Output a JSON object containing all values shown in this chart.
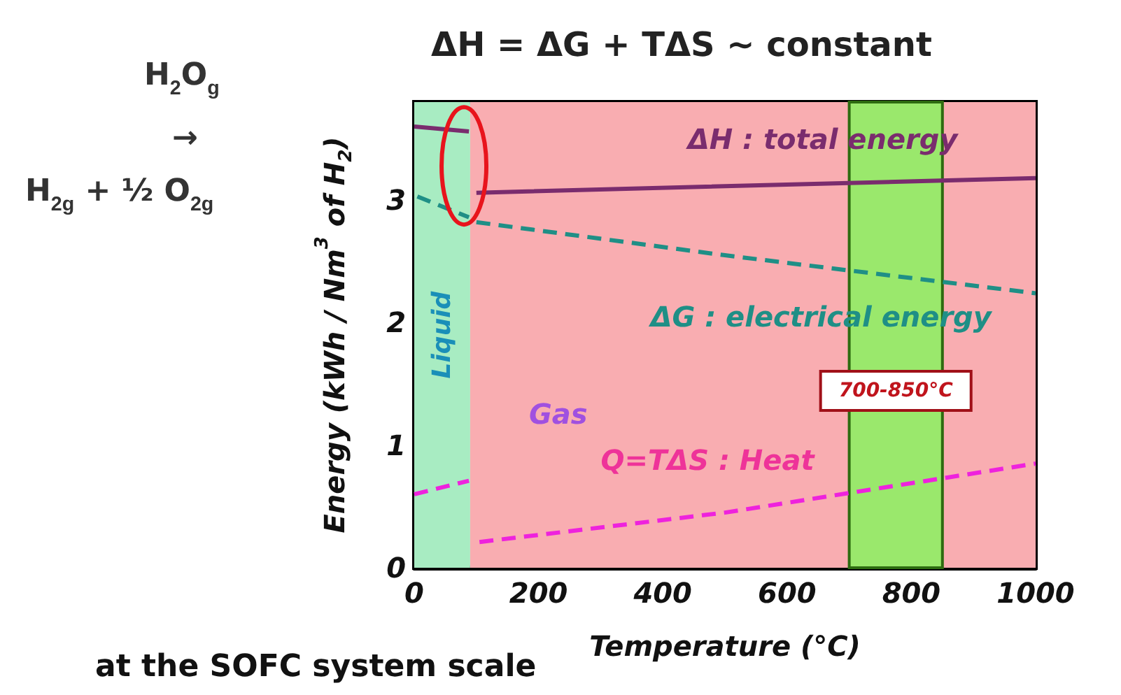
{
  "chart_data": {
    "type": "line",
    "title": "ΔH = ΔG + TΔS ~ constant",
    "xlabel": "Temperature (°C)",
    "ylabel": "Energy (kWh / Nm$^{3}$ of H$_{2}$)",
    "xlim": [
      0,
      1000
    ],
    "xticks": [
      0,
      200,
      400,
      600,
      800,
      {
        "value": 1000,
        "label": "1000"
      }
    ],
    "ylim": [
      0,
      3.8
    ],
    "yticks": [
      0,
      1,
      2,
      3
    ],
    "grid": false,
    "legend": false,
    "marker": "none",
    "series": [
      {
        "name": "ΔH : total energy",
        "color": "#7a2c6e",
        "line_style": "solid",
        "x": [
          0,
          88,
          95,
          100,
          1000
        ],
        "values": [
          3.6,
          3.56,
          null,
          3.06,
          3.18
        ]
      },
      {
        "name": "ΔG : electrical energy",
        "color": "#1f8f86",
        "line_style": "dashed",
        "x": [
          5,
          88,
          95,
          100,
          500,
          1000
        ],
        "values": [
          3.03,
          2.86,
          null,
          2.82,
          2.55,
          2.24
        ]
      },
      {
        "name": "Q=TΔS : Heat",
        "color": "#ee22dd",
        "line_style": "dashed",
        "x": [
          0,
          88,
          95,
          105,
          500,
          1000
        ],
        "values": [
          0.6,
          0.71,
          null,
          0.21,
          0.45,
          0.85
        ]
      }
    ],
    "bands": [
      {
        "axis": "x",
        "from": 0,
        "to": 90,
        "label": "Liquid",
        "color": "#a8ecc2"
      },
      {
        "axis": "x",
        "from": 90,
        "to": 1000,
        "color": "#f9adb1"
      },
      {
        "axis": "x",
        "from": 700,
        "to": 850,
        "label": "700-850°C",
        "color": "#9ae86c"
      }
    ],
    "annotations": [
      "Gas",
      "H$_{2}$O$_{g}$",
      "→",
      "H$_{2g}$ + ½ O$_{2g}$",
      "at the SOFC system scale"
    ]
  }
}
